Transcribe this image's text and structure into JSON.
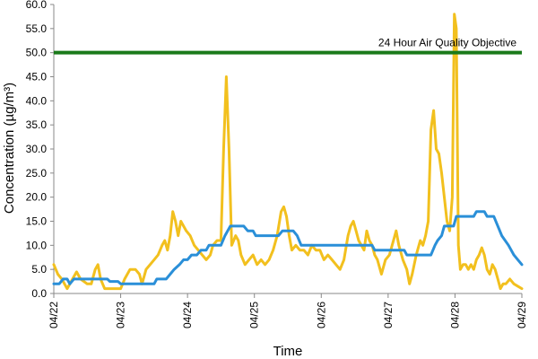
{
  "chart_data": {
    "type": "line",
    "xlabel": "Time",
    "ylabel": "Concentration (µg/m³)",
    "ylim": [
      0,
      60
    ],
    "y_ticks": [
      0,
      5,
      10,
      15,
      20,
      25,
      30,
      35,
      40,
      45,
      50,
      55,
      60
    ],
    "y_tick_labels": [
      "0.0",
      "5.0",
      "10.0",
      "15.0",
      "20.0",
      "25.0",
      "30.0",
      "35.0",
      "40.0",
      "45.0",
      "50.0",
      "55.0",
      "60.0"
    ],
    "xlim": [
      0,
      7
    ],
    "x_ticks": [
      0,
      1,
      2,
      3,
      4,
      5,
      6,
      7
    ],
    "x_tick_labels": [
      "04/22",
      "04/23",
      "04/24",
      "04/25",
      "04/26",
      "04/27",
      "04/28",
      "04/29"
    ],
    "grid": false,
    "objective": {
      "label": "24 Hour Air Quality Objective",
      "value": 50,
      "color": "#1a7a1a"
    },
    "series": [
      {
        "color": "#f2c01e",
        "points": [
          [
            0.0,
            6.0
          ],
          [
            0.06,
            4.0
          ],
          [
            0.12,
            3.0
          ],
          [
            0.2,
            1.0
          ],
          [
            0.28,
            3.0
          ],
          [
            0.34,
            4.5
          ],
          [
            0.4,
            3.0
          ],
          [
            0.5,
            2.0
          ],
          [
            0.56,
            2.0
          ],
          [
            0.62,
            5.0
          ],
          [
            0.66,
            6.0
          ],
          [
            0.7,
            3.0
          ],
          [
            0.76,
            1.0
          ],
          [
            0.88,
            1.0
          ],
          [
            1.0,
            1.0
          ],
          [
            1.06,
            3.0
          ],
          [
            1.14,
            5.0
          ],
          [
            1.22,
            5.0
          ],
          [
            1.28,
            4.0
          ],
          [
            1.32,
            2.0
          ],
          [
            1.38,
            5.0
          ],
          [
            1.44,
            6.0
          ],
          [
            1.5,
            7.0
          ],
          [
            1.56,
            8.0
          ],
          [
            1.62,
            10.0
          ],
          [
            1.66,
            11.0
          ],
          [
            1.7,
            9.0
          ],
          [
            1.74,
            12.0
          ],
          [
            1.78,
            17.0
          ],
          [
            1.82,
            15.0
          ],
          [
            1.86,
            12.0
          ],
          [
            1.9,
            15.0
          ],
          [
            1.94,
            14.0
          ],
          [
            1.98,
            13.0
          ],
          [
            2.04,
            12.0
          ],
          [
            2.1,
            10.0
          ],
          [
            2.16,
            9.0
          ],
          [
            2.22,
            8.0
          ],
          [
            2.28,
            7.0
          ],
          [
            2.34,
            8.0
          ],
          [
            2.38,
            10.0
          ],
          [
            2.44,
            11.0
          ],
          [
            2.5,
            11.0
          ],
          [
            2.54,
            30.0
          ],
          [
            2.58,
            45.0
          ],
          [
            2.62,
            30.0
          ],
          [
            2.66,
            10.0
          ],
          [
            2.72,
            12.0
          ],
          [
            2.76,
            11.0
          ],
          [
            2.8,
            8.0
          ],
          [
            2.86,
            6.0
          ],
          [
            2.92,
            7.0
          ],
          [
            2.98,
            8.0
          ],
          [
            3.04,
            6.0
          ],
          [
            3.1,
            7.0
          ],
          [
            3.16,
            6.0
          ],
          [
            3.22,
            7.0
          ],
          [
            3.28,
            9.0
          ],
          [
            3.34,
            12.0
          ],
          [
            3.4,
            17.0
          ],
          [
            3.44,
            18.0
          ],
          [
            3.48,
            16.0
          ],
          [
            3.52,
            12.0
          ],
          [
            3.56,
            9.0
          ],
          [
            3.62,
            10.0
          ],
          [
            3.68,
            9.0
          ],
          [
            3.74,
            9.0
          ],
          [
            3.8,
            8.0
          ],
          [
            3.86,
            10.0
          ],
          [
            3.92,
            9.0
          ],
          [
            3.98,
            9.0
          ],
          [
            4.04,
            7.0
          ],
          [
            4.1,
            8.0
          ],
          [
            4.16,
            7.0
          ],
          [
            4.22,
            6.0
          ],
          [
            4.28,
            5.0
          ],
          [
            4.34,
            7.0
          ],
          [
            4.4,
            12.0
          ],
          [
            4.44,
            14.0
          ],
          [
            4.48,
            15.0
          ],
          [
            4.52,
            13.0
          ],
          [
            4.56,
            11.0
          ],
          [
            4.6,
            10.0
          ],
          [
            4.64,
            9.0
          ],
          [
            4.68,
            13.0
          ],
          [
            4.72,
            11.0
          ],
          [
            4.76,
            10.0
          ],
          [
            4.8,
            8.0
          ],
          [
            4.84,
            7.0
          ],
          [
            4.9,
            4.0
          ],
          [
            4.96,
            7.0
          ],
          [
            5.02,
            8.0
          ],
          [
            5.08,
            11.0
          ],
          [
            5.12,
            13.0
          ],
          [
            5.16,
            10.0
          ],
          [
            5.22,
            7.0
          ],
          [
            5.28,
            5.0
          ],
          [
            5.32,
            2.0
          ],
          [
            5.36,
            4.0
          ],
          [
            5.42,
            8.0
          ],
          [
            5.48,
            11.0
          ],
          [
            5.52,
            10.0
          ],
          [
            5.56,
            12.0
          ],
          [
            5.6,
            15.0
          ],
          [
            5.64,
            34.0
          ],
          [
            5.68,
            38.0
          ],
          [
            5.72,
            30.0
          ],
          [
            5.76,
            29.0
          ],
          [
            5.8,
            25.0
          ],
          [
            5.84,
            20.0
          ],
          [
            5.88,
            15.0
          ],
          [
            5.92,
            13.0
          ],
          [
            5.96,
            20.0
          ],
          [
            5.99,
            58.0
          ],
          [
            6.02,
            55.0
          ],
          [
            6.05,
            10.0
          ],
          [
            6.08,
            5.0
          ],
          [
            6.12,
            6.0
          ],
          [
            6.16,
            6.0
          ],
          [
            6.2,
            5.0
          ],
          [
            6.24,
            6.0
          ],
          [
            6.28,
            5.0
          ],
          [
            6.32,
            7.0
          ],
          [
            6.36,
            8.0
          ],
          [
            6.4,
            9.5
          ],
          [
            6.44,
            8.0
          ],
          [
            6.48,
            5.0
          ],
          [
            6.52,
            4.0
          ],
          [
            6.56,
            6.0
          ],
          [
            6.6,
            5.0
          ],
          [
            6.64,
            3.0
          ],
          [
            6.68,
            1.0
          ],
          [
            6.72,
            2.0
          ],
          [
            6.76,
            2.0
          ],
          [
            6.82,
            3.0
          ],
          [
            6.88,
            2.0
          ],
          [
            6.94,
            1.5
          ],
          [
            7.0,
            1.0
          ]
        ]
      },
      {
        "color": "#2a8fd8",
        "points": [
          [
            0.0,
            2.0
          ],
          [
            0.08,
            2.0
          ],
          [
            0.14,
            3.0
          ],
          [
            0.2,
            3.0
          ],
          [
            0.24,
            2.0
          ],
          [
            0.3,
            3.0
          ],
          [
            0.8,
            3.0
          ],
          [
            0.84,
            2.5
          ],
          [
            0.96,
            2.5
          ],
          [
            1.0,
            2.0
          ],
          [
            1.5,
            2.0
          ],
          [
            1.54,
            3.0
          ],
          [
            1.68,
            3.0
          ],
          [
            1.74,
            4.0
          ],
          [
            1.8,
            5.0
          ],
          [
            1.88,
            6.0
          ],
          [
            1.94,
            7.0
          ],
          [
            2.0,
            7.0
          ],
          [
            2.06,
            8.0
          ],
          [
            2.14,
            8.0
          ],
          [
            2.2,
            9.0
          ],
          [
            2.28,
            9.0
          ],
          [
            2.32,
            10.0
          ],
          [
            2.5,
            10.0
          ],
          [
            2.56,
            12.0
          ],
          [
            2.64,
            14.0
          ],
          [
            2.84,
            14.0
          ],
          [
            2.9,
            13.0
          ],
          [
            2.98,
            13.0
          ],
          [
            3.02,
            12.0
          ],
          [
            3.36,
            12.0
          ],
          [
            3.42,
            13.0
          ],
          [
            3.58,
            13.0
          ],
          [
            3.64,
            12.0
          ],
          [
            3.7,
            10.0
          ],
          [
            4.76,
            10.0
          ],
          [
            4.8,
            9.0
          ],
          [
            5.24,
            9.0
          ],
          [
            5.28,
            8.0
          ],
          [
            5.64,
            8.0
          ],
          [
            5.7,
            10.0
          ],
          [
            5.74,
            11.0
          ],
          [
            5.8,
            12.0
          ],
          [
            5.84,
            14.0
          ],
          [
            5.98,
            14.0
          ],
          [
            6.02,
            16.0
          ],
          [
            6.28,
            16.0
          ],
          [
            6.32,
            17.0
          ],
          [
            6.44,
            17.0
          ],
          [
            6.48,
            16.0
          ],
          [
            6.58,
            16.0
          ],
          [
            6.64,
            14.0
          ],
          [
            6.7,
            12.0
          ],
          [
            6.8,
            10.0
          ],
          [
            6.88,
            8.0
          ],
          [
            6.94,
            7.0
          ],
          [
            7.0,
            6.0
          ]
        ]
      }
    ]
  }
}
